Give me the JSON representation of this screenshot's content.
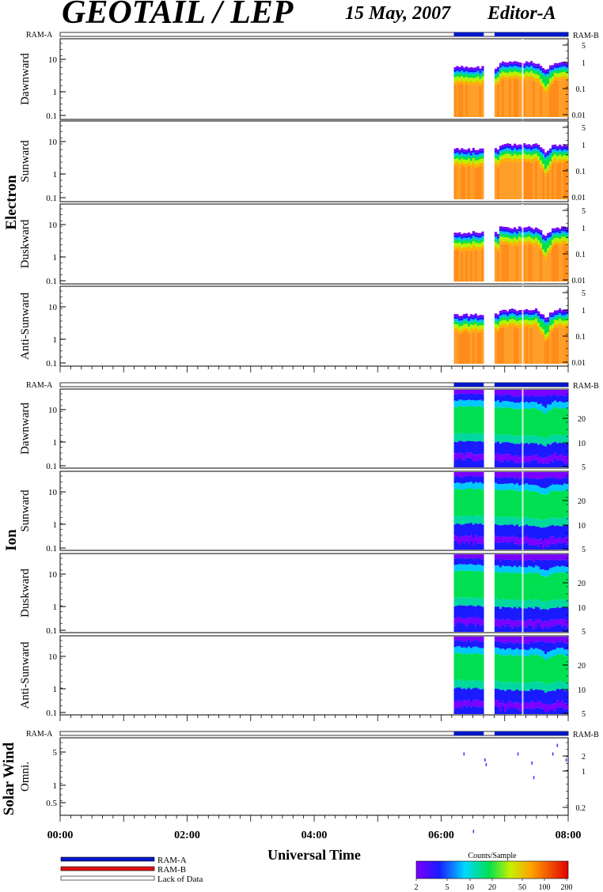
{
  "header": {
    "title": "GEOTAIL / LEP",
    "date": "15 May, 2007",
    "editor": "Editor-A"
  },
  "colors": {
    "ram_a": "#0018c8",
    "ram_b": "#e01010",
    "lack": "#ffffff"
  },
  "groups": {
    "electron": "Electron",
    "ion": "Ion",
    "solar_wind": "Solar Wind"
  },
  "ram_labels": {
    "a": "RAM-A",
    "b": "RAM-B"
  },
  "xaxis": {
    "title": "Universal Time",
    "ticks": [
      "00:00",
      "02:00",
      "04:00",
      "06:00",
      "08:00"
    ]
  },
  "legend": {
    "ram_a": "RAM-A",
    "ram_b": "RAM-B",
    "lack": "Lack of Data"
  },
  "colorbar": {
    "title": "Counts/Sample",
    "ticks": [
      "2",
      "5",
      "10",
      "20",
      "50",
      "100",
      "200"
    ]
  },
  "chart_data": [
    {
      "type": "heatmap",
      "group": "Electron",
      "ylabel": "Dawnward",
      "y_left_ticks": [
        "10",
        "1",
        "0.1"
      ],
      "y_right_ticks": [
        "5",
        "1",
        "0.1",
        "0.01"
      ],
      "xlim_hours": [
        0,
        8
      ],
      "data_intervals_hours": [
        [
          6.2,
          6.67
        ],
        [
          6.84,
          8.0
        ]
      ],
      "ram_a_intervals_hours": [
        [
          6.2,
          6.67
        ],
        [
          6.84,
          8.0
        ]
      ]
    },
    {
      "type": "heatmap",
      "group": "Electron",
      "ylabel": "Sunward",
      "y_left_ticks": [
        "10",
        "1",
        "0.1"
      ],
      "y_right_ticks": [
        "5",
        "1",
        "0.1",
        "0.01"
      ],
      "xlim_hours": [
        0,
        8
      ],
      "data_intervals_hours": [
        [
          6.2,
          6.67
        ],
        [
          6.84,
          8.0
        ]
      ]
    },
    {
      "type": "heatmap",
      "group": "Electron",
      "ylabel": "Duskward",
      "y_left_ticks": [
        "10",
        "1",
        "0.1"
      ],
      "y_right_ticks": [
        "5",
        "1",
        "0.1",
        "0.01"
      ],
      "xlim_hours": [
        0,
        8
      ],
      "data_intervals_hours": [
        [
          6.2,
          6.67
        ],
        [
          6.84,
          8.0
        ]
      ]
    },
    {
      "type": "heatmap",
      "group": "Electron",
      "ylabel": "Anti-Sunward",
      "y_left_ticks": [
        "10",
        "1",
        "0.1"
      ],
      "y_right_ticks": [
        "5",
        "1",
        "0.1",
        "0.01"
      ],
      "xlim_hours": [
        0,
        8
      ],
      "data_intervals_hours": [
        [
          6.2,
          6.67
        ],
        [
          6.84,
          8.0
        ]
      ]
    },
    {
      "type": "heatmap",
      "group": "Ion",
      "ylabel": "Dawnward",
      "y_left_ticks": [
        "10",
        "1",
        "0.1"
      ],
      "y_right_ticks": [
        "20",
        "10",
        "5"
      ],
      "xlim_hours": [
        0,
        8
      ],
      "data_intervals_hours": [
        [
          6.2,
          6.67
        ],
        [
          6.84,
          8.0
        ]
      ],
      "ram_a_intervals_hours": [
        [
          6.2,
          6.67
        ],
        [
          6.84,
          8.0
        ]
      ]
    },
    {
      "type": "heatmap",
      "group": "Ion",
      "ylabel": "Sunward",
      "y_left_ticks": [
        "10",
        "1",
        "0.1"
      ],
      "y_right_ticks": [
        "20",
        "10",
        "5"
      ],
      "xlim_hours": [
        0,
        8
      ],
      "data_intervals_hours": [
        [
          6.2,
          6.67
        ],
        [
          6.84,
          8.0
        ]
      ]
    },
    {
      "type": "heatmap",
      "group": "Ion",
      "ylabel": "Duskward",
      "y_left_ticks": [
        "10",
        "1",
        "0.1"
      ],
      "y_right_ticks": [
        "20",
        "10",
        "5"
      ],
      "xlim_hours": [
        0,
        8
      ],
      "data_intervals_hours": [
        [
          6.2,
          6.67
        ],
        [
          6.84,
          8.0
        ]
      ]
    },
    {
      "type": "heatmap",
      "group": "Ion",
      "ylabel": "Anti-Sunward",
      "y_left_ticks": [
        "10",
        "1",
        "0.1"
      ],
      "y_right_ticks": [
        "20",
        "10",
        "5"
      ],
      "xlim_hours": [
        0,
        8
      ],
      "data_intervals_hours": [
        [
          6.2,
          6.67
        ],
        [
          6.84,
          8.0
        ]
      ]
    },
    {
      "type": "scatter",
      "group": "Solar Wind",
      "ylabel": "Omni.",
      "y_left_ticks": [
        "5",
        "1",
        "0.5"
      ],
      "y_right_ticks": [
        "2",
        "1",
        "0.2"
      ],
      "xlim_hours": [
        0,
        8
      ],
      "ram_a_intervals_hours": [
        [
          6.2,
          6.67
        ],
        [
          6.84,
          8.0
        ]
      ],
      "points": [
        {
          "x": 6.35,
          "y": 4.0
        },
        {
          "x": 6.5,
          "y": 0.1
        },
        {
          "x": 6.68,
          "y": 3.0
        },
        {
          "x": 6.7,
          "y": 2.4
        },
        {
          "x": 7.2,
          "y": 4.0
        },
        {
          "x": 7.42,
          "y": 2.6
        },
        {
          "x": 7.45,
          "y": 1.3
        },
        {
          "x": 7.75,
          "y": 4.0
        },
        {
          "x": 7.82,
          "y": 6.0
        },
        {
          "x": 7.96,
          "y": 3.0
        }
      ]
    }
  ]
}
